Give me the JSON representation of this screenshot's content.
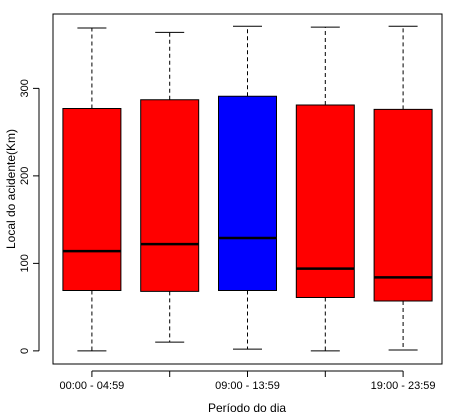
{
  "chart_data": {
    "type": "boxplot",
    "title": "",
    "xlabel": "Período do dia",
    "ylabel": "Local do acidente(Km)",
    "ylim": [
      -15,
      385
    ],
    "yticks": [
      0,
      100,
      200,
      300
    ],
    "categories": [
      "00:00 - 04:59",
      "",
      "09:00 - 13:59",
      "",
      "19:00 - 23:59"
    ],
    "grid": false,
    "legend": "none",
    "colors": {
      "default": "#ff0000",
      "highlight": "#0000ff",
      "whisker": "#000000"
    },
    "boxes": [
      {
        "min": 0,
        "q1": 69,
        "median": 114,
        "q3": 277,
        "max": 369,
        "color": "#ff0000"
      },
      {
        "min": 10,
        "q1": 68,
        "median": 122,
        "q3": 287,
        "max": 364,
        "color": "#ff0000"
      },
      {
        "min": 2,
        "q1": 69,
        "median": 129,
        "q3": 291,
        "max": 371,
        "color": "#0000ff"
      },
      {
        "min": 0,
        "q1": 61,
        "median": 94,
        "q3": 281,
        "max": 370,
        "color": "#ff0000"
      },
      {
        "min": 1,
        "q1": 57,
        "median": 84,
        "q3": 276,
        "max": 371,
        "color": "#ff0000"
      }
    ]
  }
}
